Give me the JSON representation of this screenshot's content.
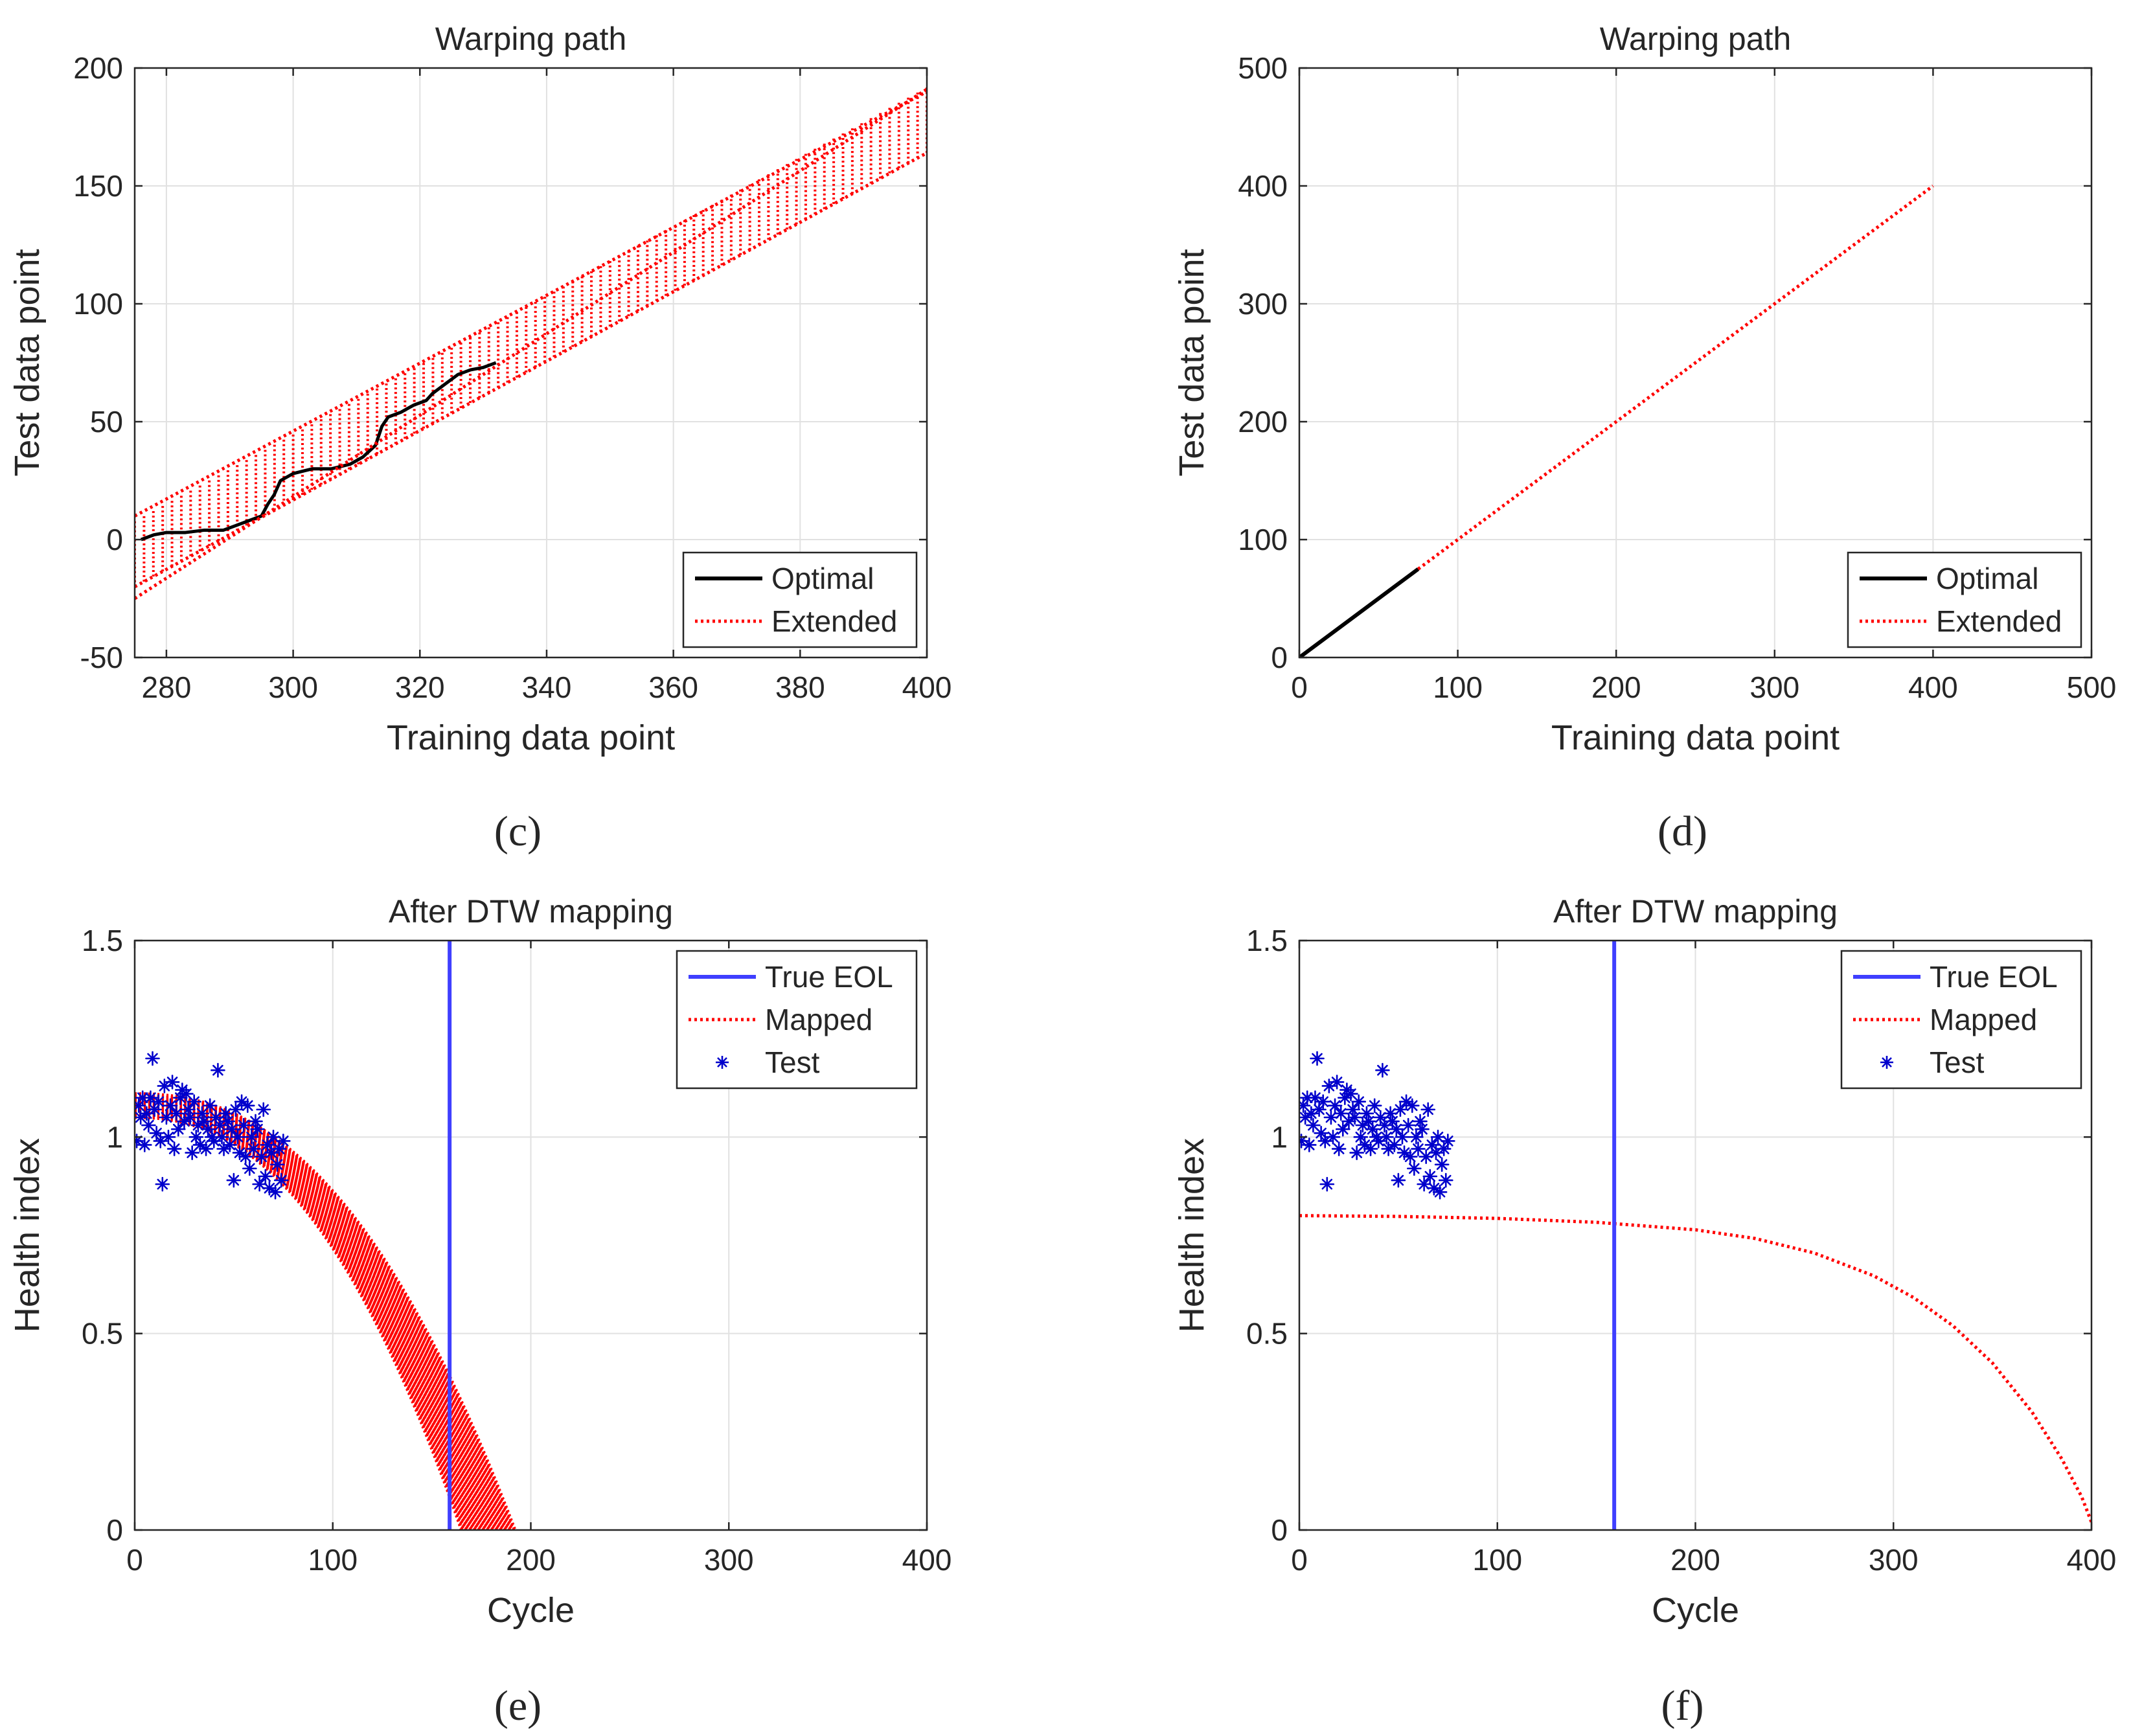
{
  "colors": {
    "optimal": "#000000",
    "extended": "#ff0000",
    "mapped": "#ff0000",
    "true_eol": "#3f3fff",
    "test": "#0000cc"
  },
  "chart_data": [
    {
      "id": "c",
      "type": "line",
      "title": "Warping path",
      "xlabel": "Training data point",
      "ylabel": "Test data point",
      "xlim": [
        275,
        400
      ],
      "ylim": [
        -50,
        200
      ],
      "xticks": [
        280,
        300,
        320,
        340,
        360,
        380,
        400
      ],
      "yticks": [
        -50,
        0,
        50,
        100,
        150,
        200
      ],
      "grid": true,
      "legend": {
        "position": "bottom-right",
        "entries": [
          "Optimal",
          "Extended"
        ]
      },
      "panel_label": "(c)",
      "band": {
        "x0": 275,
        "x1": 400,
        "center_y0": -6,
        "center_y1": 178,
        "half_width": 14,
        "count": 85
      },
      "series": [
        {
          "name": "Optimal",
          "style": "solid",
          "x": [
            276,
            278,
            280,
            283,
            286,
            289,
            291,
            293,
            294,
            295,
            296,
            297,
            298,
            300,
            303,
            306,
            309,
            311,
            313,
            314,
            315,
            317,
            319,
            321,
            322,
            324,
            326,
            328,
            330,
            332
          ],
          "y": [
            0,
            2,
            3,
            3,
            4,
            4,
            6,
            8,
            9,
            10,
            15,
            19,
            25,
            28,
            30,
            30,
            32,
            35,
            40,
            48,
            52,
            54,
            57,
            59,
            62,
            66,
            70,
            72,
            73,
            75
          ]
        },
        {
          "name": "Extended",
          "style": "dotted",
          "x": [
            275,
            400
          ],
          "y": [
            -25,
            191
          ]
        },
        {
          "name": "Extended",
          "style": "dotted",
          "x": [
            275,
            400
          ],
          "y": [
            10,
            190
          ]
        },
        {
          "name": "Extended",
          "style": "dotted",
          "x": [
            275,
            400
          ],
          "y": [
            -20,
            164
          ]
        }
      ]
    },
    {
      "id": "d",
      "type": "line",
      "title": "Warping path",
      "xlabel": "Training data point",
      "ylabel": "Test data point",
      "xlim": [
        0,
        500
      ],
      "ylim": [
        0,
        500
      ],
      "xticks": [
        0,
        100,
        200,
        300,
        400,
        500
      ],
      "yticks": [
        0,
        100,
        200,
        300,
        400,
        500
      ],
      "grid": true,
      "legend": {
        "position": "bottom-right",
        "entries": [
          "Optimal",
          "Extended"
        ]
      },
      "panel_label": "(d)",
      "series": [
        {
          "name": "Optimal",
          "style": "solid",
          "x": [
            0,
            75
          ],
          "y": [
            0,
            75
          ]
        },
        {
          "name": "Extended",
          "style": "dotted",
          "x": [
            75,
            400
          ],
          "y": [
            75,
            400
          ]
        }
      ]
    },
    {
      "id": "e",
      "type": "scatter",
      "title": "After DTW mapping",
      "xlabel": "Cycle",
      "ylabel": "Health index",
      "xlim": [
        0,
        400
      ],
      "ylim": [
        0,
        1.5
      ],
      "xticks": [
        0,
        100,
        200,
        300,
        400
      ],
      "yticks": [
        0,
        0.5,
        1,
        1.5
      ],
      "grid": true,
      "legend": {
        "position": "top-right",
        "entries": [
          "True EOL",
          "Mapped",
          "Test"
        ]
      },
      "panel_label": "(e)",
      "true_eol": 159,
      "mapped_bundle": {
        "curves": 60,
        "start_y": [
          1.05,
          1.11
        ],
        "end_x": [
          165,
          192
        ]
      },
      "test": {
        "x": [
          1,
          2,
          3,
          4,
          5,
          6,
          7,
          8,
          9,
          10,
          11,
          12,
          13,
          14,
          15,
          16,
          17,
          18,
          19,
          20,
          21,
          22,
          23,
          24,
          25,
          26,
          27,
          28,
          29,
          30,
          31,
          32,
          33,
          34,
          35,
          36,
          37,
          38,
          39,
          40,
          41,
          42,
          43,
          44,
          45,
          46,
          47,
          48,
          49,
          50,
          51,
          52,
          53,
          54,
          55,
          56,
          57,
          58,
          59,
          60,
          61,
          62,
          63,
          64,
          65,
          66,
          67,
          68,
          69,
          70,
          71,
          72,
          73,
          74,
          75
        ],
        "y": [
          0.99,
          1.08,
          1.05,
          1.1,
          0.98,
          1.06,
          1.03,
          1.1,
          1.2,
          1.07,
          1.01,
          1.09,
          0.99,
          0.88,
          1.13,
          1.05,
          1.0,
          1.08,
          1.14,
          0.97,
          1.06,
          1.02,
          1.1,
          1.12,
          1.04,
          1.11,
          1.07,
          1.05,
          0.96,
          1.09,
          1.0,
          1.03,
          0.98,
          1.06,
          1.04,
          0.97,
          1.02,
          1.08,
          1.0,
          0.99,
          1.05,
          1.17,
          1.03,
          1.0,
          0.97,
          1.06,
          1.04,
          0.98,
          1.02,
          0.89,
          1.07,
          1.0,
          0.96,
          1.09,
          1.03,
          0.95,
          1.08,
          0.92,
          1.0,
          0.97,
          1.04,
          1.02,
          0.88,
          0.95,
          1.07,
          0.9,
          0.98,
          0.87,
          0.96,
          1.0,
          0.86,
          0.93,
          0.97,
          0.89,
          0.99
        ]
      }
    },
    {
      "id": "f",
      "type": "scatter",
      "title": "After DTW mapping",
      "xlabel": "Cycle",
      "ylabel": "Health index",
      "xlim": [
        0,
        400
      ],
      "ylim": [
        0,
        1.5
      ],
      "xticks": [
        0,
        100,
        200,
        300,
        400
      ],
      "yticks": [
        0,
        0.5,
        1,
        1.5
      ],
      "grid": true,
      "legend": {
        "position": "top-right",
        "entries": [
          "True EOL",
          "Mapped",
          "Test"
        ]
      },
      "panel_label": "(f)",
      "true_eol": 159,
      "mapped": {
        "x": [
          0,
          50,
          100,
          150,
          200,
          230,
          260,
          290,
          310,
          330,
          350,
          370,
          385,
          395,
          400
        ],
        "y": [
          0.8,
          0.798,
          0.793,
          0.783,
          0.764,
          0.742,
          0.705,
          0.647,
          0.592,
          0.52,
          0.425,
          0.3,
          0.181,
          0.085,
          0.02
        ]
      },
      "test": {
        "x": [
          1,
          2,
          3,
          4,
          5,
          6,
          7,
          8,
          9,
          10,
          11,
          12,
          13,
          14,
          15,
          16,
          17,
          18,
          19,
          20,
          21,
          22,
          23,
          24,
          25,
          26,
          27,
          28,
          29,
          30,
          31,
          32,
          33,
          34,
          35,
          36,
          37,
          38,
          39,
          40,
          41,
          42,
          43,
          44,
          45,
          46,
          47,
          48,
          49,
          50,
          51,
          52,
          53,
          54,
          55,
          56,
          57,
          58,
          59,
          60,
          61,
          62,
          63,
          64,
          65,
          66,
          67,
          68,
          69,
          70,
          71,
          72,
          73,
          74,
          75
        ],
        "y": [
          0.99,
          1.08,
          1.05,
          1.1,
          0.98,
          1.06,
          1.03,
          1.1,
          1.2,
          1.07,
          1.01,
          1.09,
          0.99,
          0.88,
          1.13,
          1.05,
          1.0,
          1.08,
          1.14,
          0.97,
          1.06,
          1.02,
          1.1,
          1.12,
          1.04,
          1.11,
          1.07,
          1.05,
          0.96,
          1.09,
          1.0,
          1.03,
          0.98,
          1.06,
          1.04,
          0.97,
          1.02,
          1.08,
          1.0,
          0.99,
          1.05,
          1.17,
          1.03,
          1.0,
          0.97,
          1.06,
          1.04,
          0.98,
          1.02,
          0.89,
          1.07,
          1.0,
          0.96,
          1.09,
          1.03,
          0.95,
          1.08,
          0.92,
          1.0,
          0.97,
          1.04,
          1.02,
          0.88,
          0.95,
          1.07,
          0.9,
          0.98,
          0.87,
          0.96,
          1.0,
          0.86,
          0.93,
          0.97,
          0.89,
          0.99
        ]
      }
    }
  ]
}
